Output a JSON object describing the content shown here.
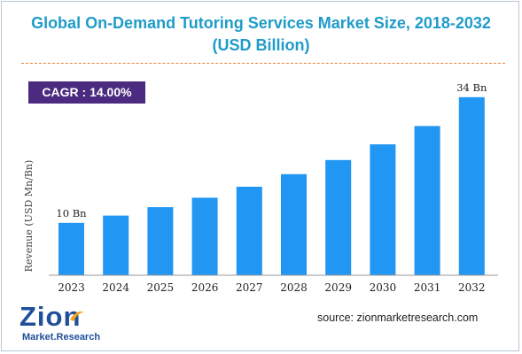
{
  "title": "Global On-Demand Tutoring Services Market Size, 2018-2032",
  "subtitle": "(USD Billion)",
  "cagr_label": "CAGR : 14.00%",
  "source": "source: zionmarketresearch.com",
  "logo": {
    "name": "Zion",
    "tagline": "Market.Research"
  },
  "colors": {
    "bar": "#2196f3",
    "title": "#1f9cc9",
    "cagr_bg": "#4b2a80",
    "divider": "#e8833a"
  },
  "chart_data": {
    "type": "bar",
    "categories": [
      "2023",
      "2024",
      "2025",
      "2026",
      "2027",
      "2028",
      "2029",
      "2030",
      "2031",
      "2032"
    ],
    "values": [
      10,
      11.4,
      13.0,
      14.8,
      16.9,
      19.3,
      22.0,
      25.0,
      28.5,
      34
    ],
    "data_labels": [
      "10 Bn",
      "",
      "",
      "",
      "",
      "",
      "",
      "",
      "",
      "34 Bn"
    ],
    "ylabel": "Revenue (USD Mn/Bn)",
    "xlabel": "",
    "ylim": [
      0,
      36
    ],
    "grid": false,
    "legend": "none"
  }
}
